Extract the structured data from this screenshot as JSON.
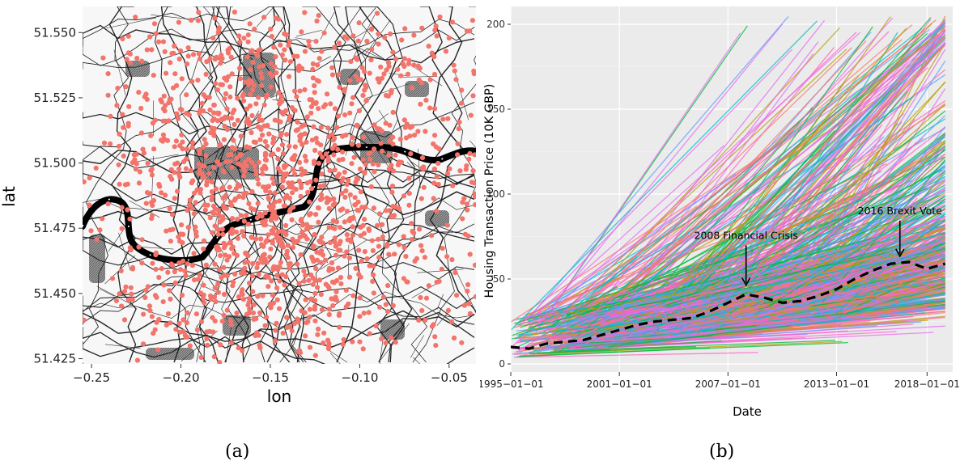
{
  "captions": {
    "a": "(a)",
    "b": "(b)"
  },
  "colors": {
    "point": "#F2746B",
    "river": "#000000",
    "panel_bg": "#EBEBEB",
    "grid_major": "#FFFFFF",
    "grid_minor": "#F5F5F5",
    "trend": "#000000",
    "series_palette": [
      "#F8766D",
      "#E76BF3",
      "#00BA38",
      "#619CFF",
      "#B79F00",
      "#00BFC4",
      "#FF61C3"
    ]
  },
  "chart_data": [
    {
      "type": "scatter",
      "xlabel": "lon",
      "ylabel": "lat",
      "xlim": [
        -0.255,
        -0.035
      ],
      "ylim": [
        51.423,
        51.56
      ],
      "x_ticks": [
        -0.25,
        -0.2,
        -0.15,
        -0.1,
        -0.05
      ],
      "x_tick_labels": [
        "−0.25",
        "−0.20",
        "−0.15",
        "−0.10",
        "−0.05"
      ],
      "y_ticks": [
        51.425,
        51.45,
        51.475,
        51.5,
        51.525,
        51.55
      ],
      "y_tick_labels": [
        "51.425",
        "51.450",
        "51.475",
        "51.500",
        "51.525",
        "51.550"
      ],
      "background": "street map of London with River Thames",
      "points_description": "approx. 1500 property locations scattered across the map",
      "point_count_estimate": 1500
    },
    {
      "type": "line",
      "xlabel": "Date",
      "ylabel": "Housing Transaction Price (10K GBP)",
      "xlim": [
        "1995-01-01",
        "2019-06-01"
      ],
      "ylim": [
        0,
        200
      ],
      "x_tick_labels": [
        "1995−01−01",
        "2001−01−01",
        "2007−01−01",
        "2013−01−01",
        "2018−01−01"
      ],
      "x_tick_values": [
        "1995-01-01",
        "2001-01-01",
        "2007-01-01",
        "2013-01-01",
        "2018-01-01"
      ],
      "y_ticks": [
        0,
        50,
        100,
        150,
        200
      ],
      "grid": true,
      "legend": "none",
      "individual_series_count_estimate": 1500,
      "trend": {
        "style": "dashed",
        "x": [
          "1995-01-01",
          "1996-01-01",
          "1997-01-01",
          "1998-01-01",
          "1999-01-01",
          "2000-01-01",
          "2001-01-01",
          "2002-01-01",
          "2003-01-01",
          "2004-01-01",
          "2005-01-01",
          "2006-01-01",
          "2007-01-01",
          "2008-01-01",
          "2009-01-01",
          "2010-01-01",
          "2011-01-01",
          "2012-01-01",
          "2013-01-01",
          "2014-01-01",
          "2015-01-01",
          "2016-01-01",
          "2017-01-01",
          "2018-01-01",
          "2019-01-01"
        ],
        "y": [
          10,
          9,
          12,
          13,
          14,
          17,
          20,
          23,
          25,
          26,
          27,
          31,
          36,
          41,
          39,
          36,
          37,
          40,
          44,
          50,
          55,
          59,
          60,
          56,
          59
        ]
      },
      "annotations": [
        {
          "text": "2008 Financial Crisis",
          "arrow_to": {
            "x": "2008-01-01",
            "y": 45
          }
        },
        {
          "text": "2016 Brexit Vote",
          "arrow_to": {
            "x": "2016-07-01",
            "y": 62
          }
        }
      ]
    }
  ]
}
